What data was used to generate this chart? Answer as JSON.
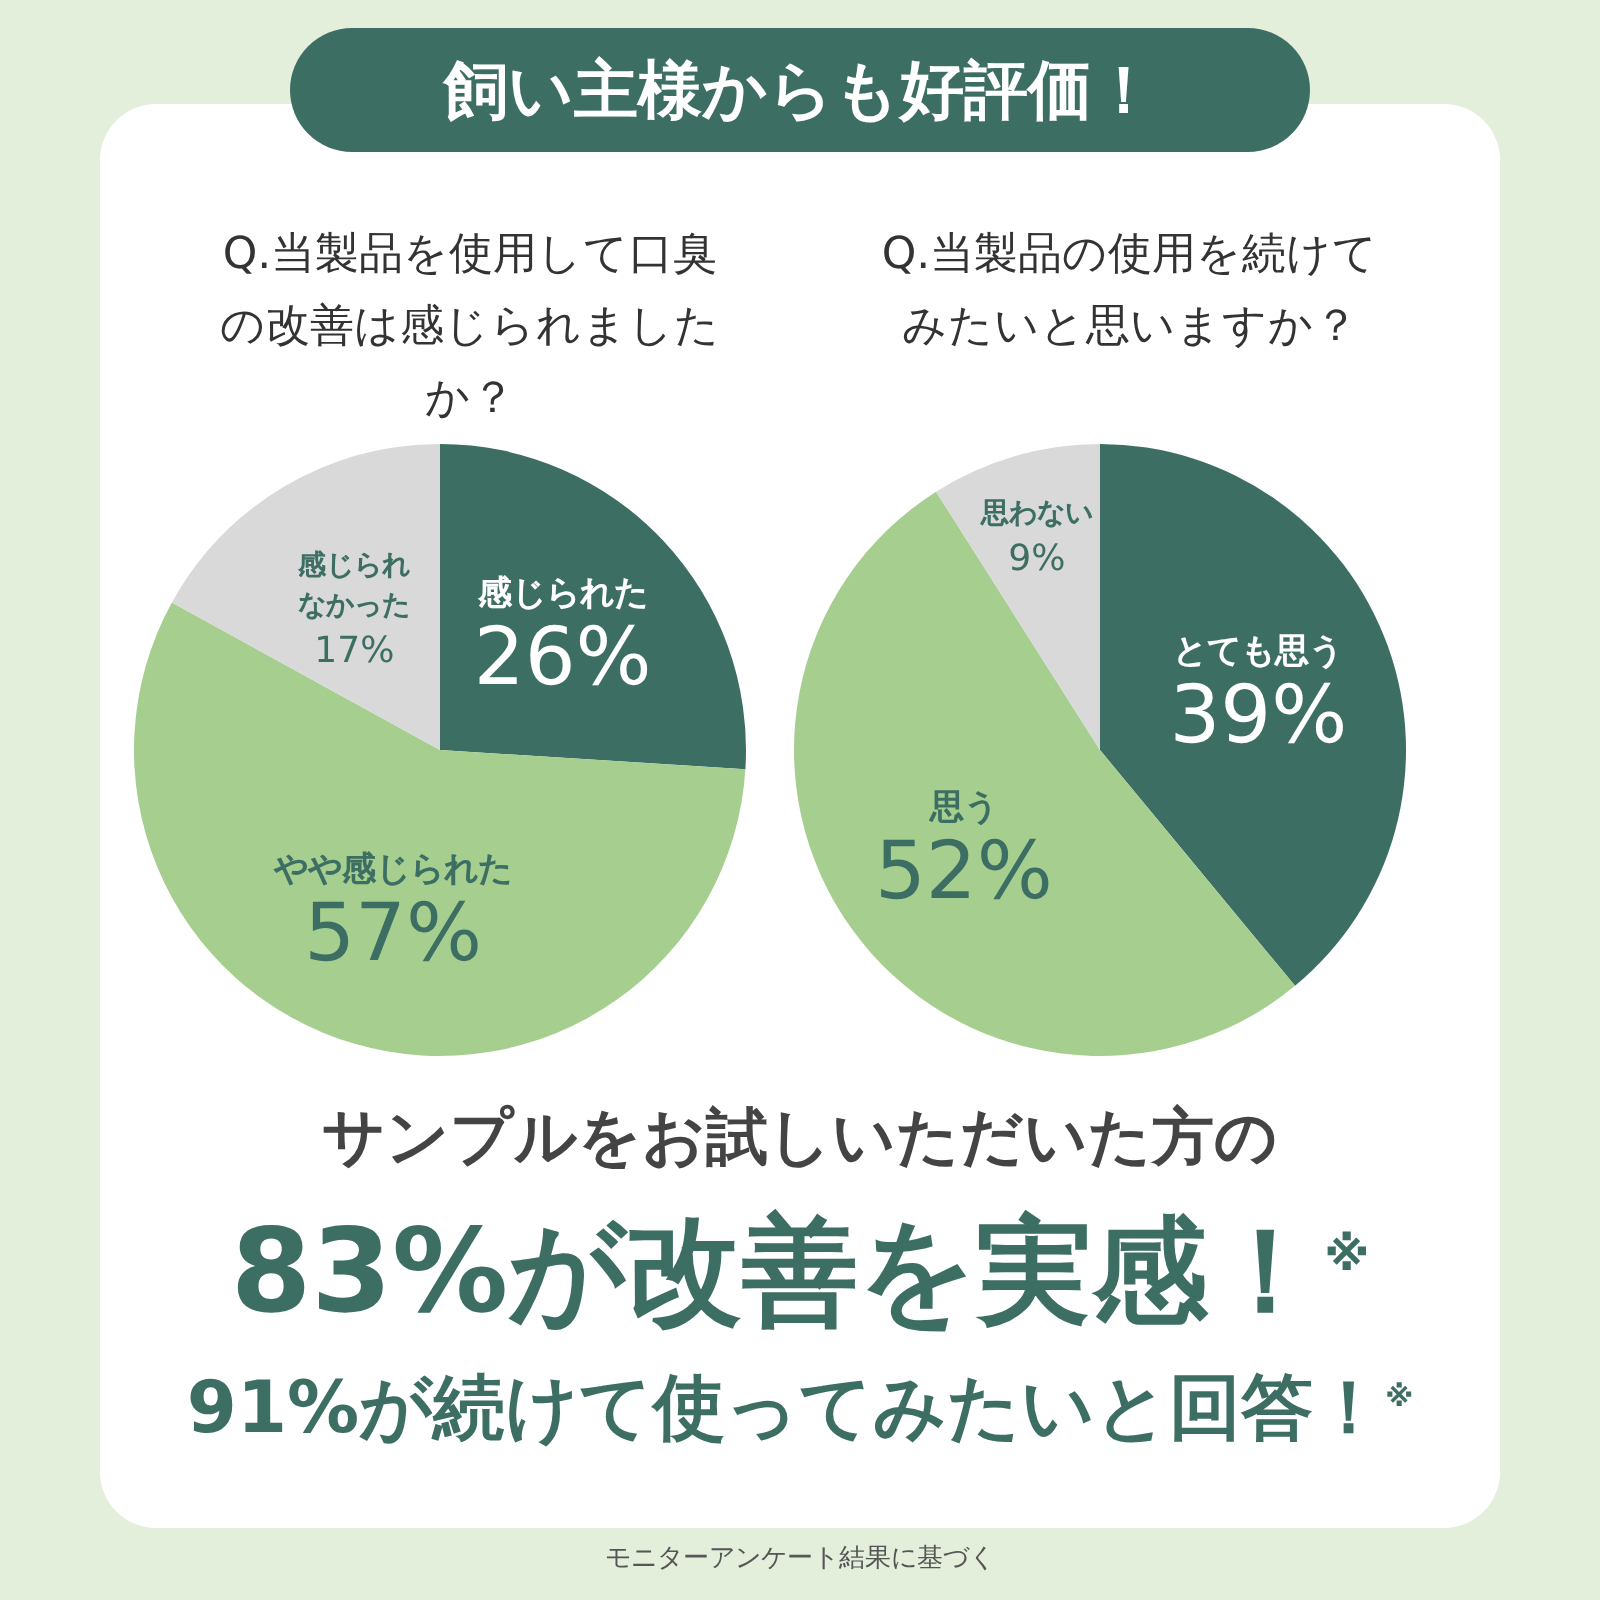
{
  "chart_data": [
    {
      "type": "pie",
      "title": "Q.当製品を使用して口臭の改善は感じられましたか？",
      "categories": [
        "感じられた",
        "やや感じられた",
        "感じられなかった"
      ],
      "values": [
        26,
        57,
        17
      ],
      "colors": [
        "#3d6e63",
        "#a6cf8f",
        "#d9d9d9"
      ],
      "value_labels": [
        "26%",
        "57%",
        "17%"
      ],
      "legend": false
    },
    {
      "type": "pie",
      "title": "Q.当製品の使用を続けてみたいと思いますか？",
      "categories": [
        "とても思う",
        "思う",
        "思わない"
      ],
      "values": [
        39,
        52,
        9
      ],
      "colors": [
        "#3d6e63",
        "#a6cf8f",
        "#d9d9d9"
      ],
      "value_labels": [
        "39%",
        "52%",
        "9%"
      ],
      "legend": false
    },
    {
      "type": "other",
      "title": "飼い主様からも好評価！",
      "annotations": [
        "サンプルをお試しいただいた方の",
        "83%が改善を実感！$^{※}$",
        "91%が続けて使ってみたいと回答！$^{※}$",
        "モニターアンケート結果に基づく"
      ]
    }
  ]
}
